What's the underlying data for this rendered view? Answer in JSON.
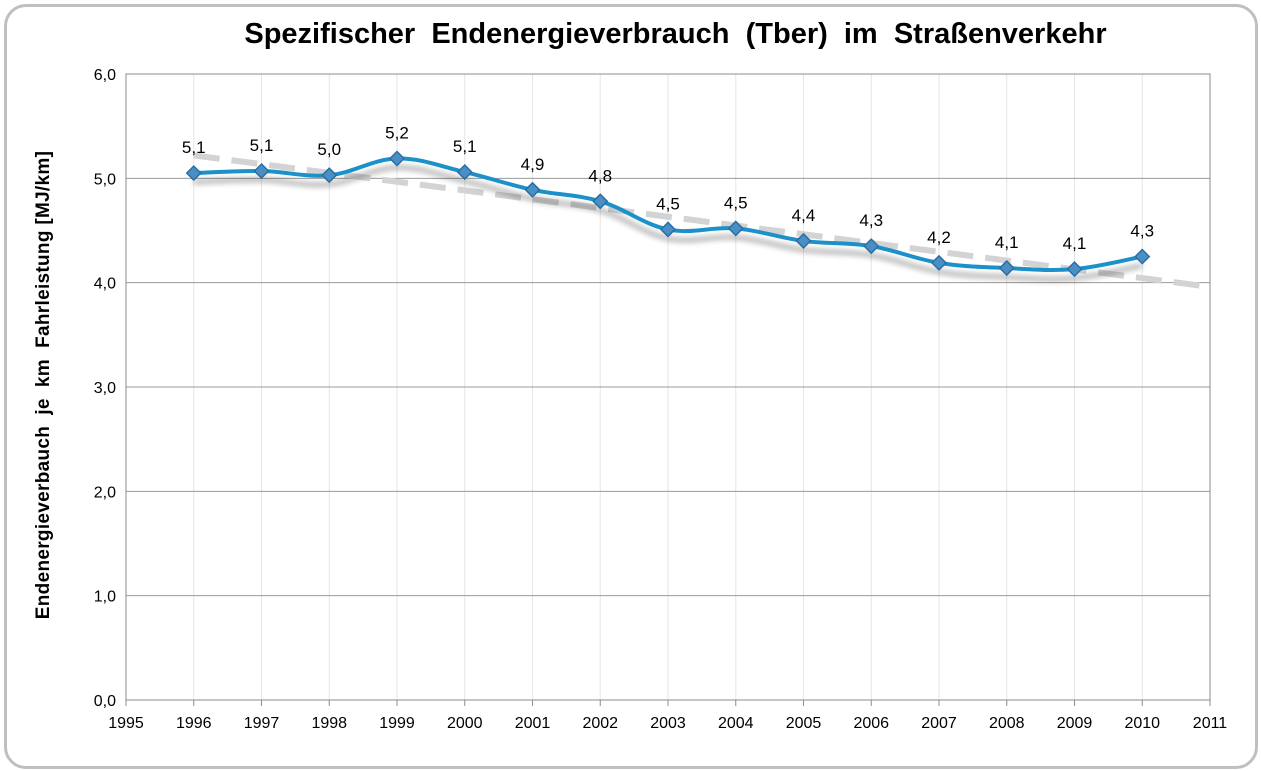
{
  "chart_data": {
    "type": "line",
    "title": "Spezifischer  Endenergieverbrauch  (Tber)  im  Straßenverkehr",
    "xlabel": "",
    "ylabel": "Endenergieverbauch  je  km  Fahrleistung [MJ/km]",
    "xlim": [
      1995,
      2011
    ],
    "ylim": [
      0,
      6
    ],
    "x_ticks": [
      "1995",
      "1996",
      "1997",
      "1998",
      "1999",
      "2000",
      "2001",
      "2002",
      "2003",
      "2004",
      "2005",
      "2006",
      "2007",
      "2008",
      "2009",
      "2010",
      "2011"
    ],
    "y_ticks": [
      "0,0",
      "1,0",
      "2,0",
      "3,0",
      "4,0",
      "5,0",
      "6,0"
    ],
    "grid": true,
    "series": [
      {
        "x": [
          1996,
          1997,
          1998,
          1999,
          2000,
          2001,
          2002,
          2003,
          2004,
          2005,
          2006,
          2007,
          2008,
          2009,
          2010
        ],
        "values": [
          5.05,
          5.07,
          5.03,
          5.19,
          5.06,
          4.89,
          4.78,
          4.51,
          4.52,
          4.4,
          4.35,
          4.19,
          4.14,
          4.13,
          4.25
        ],
        "labels": [
          "5,1",
          "5,1",
          "5,0",
          "5,2",
          "5,1",
          "4,9",
          "4,8",
          "4,5",
          "4,5",
          "4,4",
          "4,3",
          "4,2",
          "4,1",
          "4,1",
          "4,3"
        ],
        "color": "#1f91c9"
      }
    ],
    "trendline": {
      "style": "dashed",
      "color": "#d3d3d3",
      "from": [
        1996,
        5.22
      ],
      "to": [
        2011,
        3.96
      ]
    }
  }
}
